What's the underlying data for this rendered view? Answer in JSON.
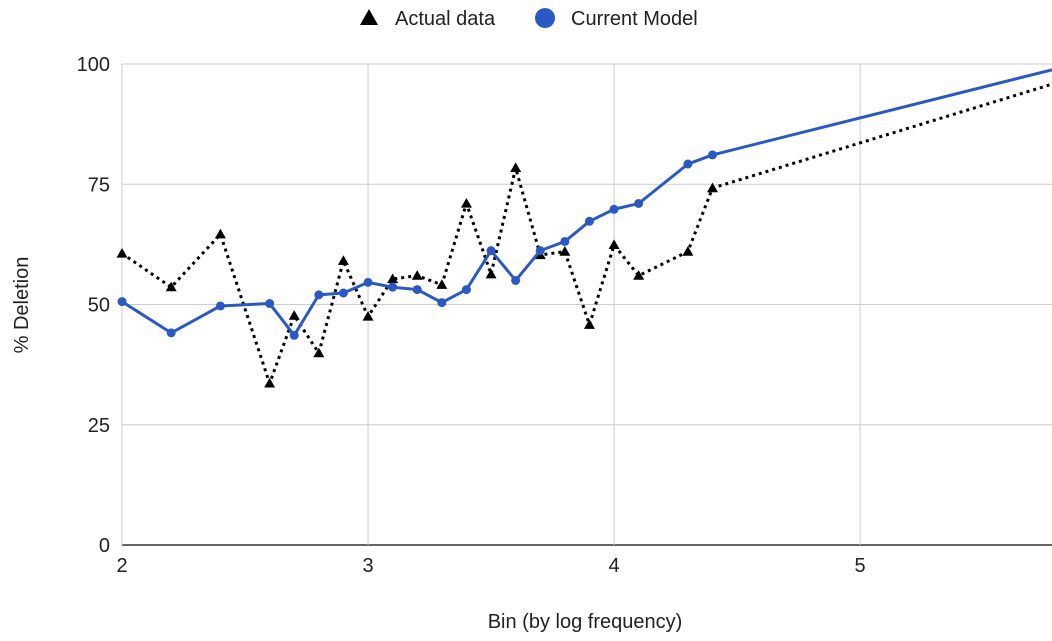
{
  "chart_data": {
    "type": "line",
    "title": "",
    "xlabel": "Bin (by log frequency)",
    "ylabel": "% Deletion",
    "xlim": [
      2,
      5.78
    ],
    "ylim": [
      0,
      100
    ],
    "x_ticks": [
      2,
      3,
      4,
      5
    ],
    "y_ticks": [
      0,
      25,
      50,
      75,
      100
    ],
    "x_tick_labels": [
      "2",
      "3",
      "4",
      "5"
    ],
    "y_tick_labels": [
      "0",
      "25",
      "50",
      "75",
      "100"
    ],
    "grid": true,
    "legend_position": "top",
    "series": [
      {
        "name": "Actual data",
        "color": "#000000",
        "line_style": "dotted",
        "marker": "triangle",
        "points": [
          [
            2.0,
            60.6
          ],
          [
            2.2,
            53.6
          ],
          [
            2.4,
            64.6
          ],
          [
            2.6,
            33.6
          ],
          [
            2.7,
            47.7
          ],
          [
            2.8,
            39.9
          ],
          [
            2.9,
            59.1
          ],
          [
            3.0,
            47.5
          ],
          [
            3.1,
            55.3
          ],
          [
            3.2,
            56.0
          ],
          [
            3.3,
            54.1
          ],
          [
            3.4,
            71.0
          ],
          [
            3.5,
            56.3
          ],
          [
            3.6,
            78.4
          ],
          [
            3.7,
            60.3
          ],
          [
            3.8,
            61.0
          ],
          [
            3.9,
            45.8
          ],
          [
            4.0,
            62.4
          ],
          [
            4.1,
            56.0
          ],
          [
            4.3,
            61.0
          ],
          [
            4.4,
            74.2
          ],
          [
            5.78,
            95.8
          ]
        ]
      },
      {
        "name": "Current Model",
        "color": "#2b59c3",
        "line_style": "solid",
        "marker": "circle",
        "points": [
          [
            2.0,
            50.6
          ],
          [
            2.2,
            44.1
          ],
          [
            2.4,
            49.7
          ],
          [
            2.6,
            50.2
          ],
          [
            2.7,
            43.6
          ],
          [
            2.8,
            52.0
          ],
          [
            2.9,
            52.4
          ],
          [
            3.0,
            54.6
          ],
          [
            3.1,
            53.6
          ],
          [
            3.2,
            53.1
          ],
          [
            3.3,
            50.4
          ],
          [
            3.4,
            53.1
          ],
          [
            3.5,
            61.2
          ],
          [
            3.6,
            55.0
          ],
          [
            3.7,
            61.2
          ],
          [
            3.8,
            63.1
          ],
          [
            3.9,
            67.3
          ],
          [
            4.0,
            69.8
          ],
          [
            4.1,
            71.0
          ],
          [
            4.3,
            79.2
          ],
          [
            4.4,
            81.1
          ],
          [
            5.78,
            98.8
          ]
        ]
      }
    ]
  }
}
